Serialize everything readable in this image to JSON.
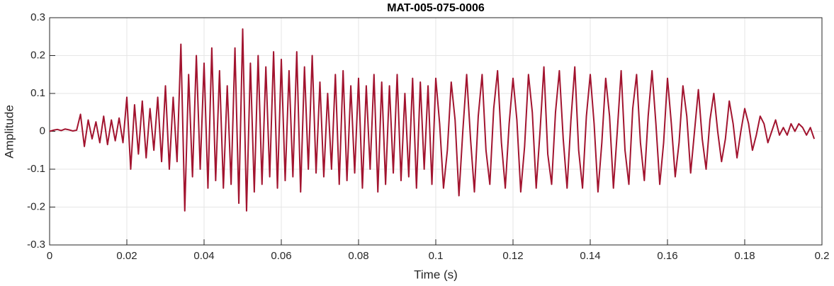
{
  "chart_data": {
    "type": "line",
    "title": "MAT-005-075-0006",
    "xlabel": "Time (s)",
    "ylabel": "Amplitude",
    "xlim": [
      0,
      0.2
    ],
    "ylim": [
      -0.3,
      0.3
    ],
    "xticks": [
      0,
      0.02,
      0.04,
      0.06,
      0.08,
      0.1,
      0.12,
      0.14,
      0.16,
      0.18,
      0.2
    ],
    "yticks": [
      -0.3,
      -0.2,
      -0.1,
      0,
      0.1,
      0.2,
      0.3
    ],
    "grid": true,
    "x": [
      0,
      0.001,
      0.002,
      0.003,
      0.004,
      0.005,
      0.006,
      0.007,
      0.008,
      0.009,
      0.01,
      0.011,
      0.012,
      0.013,
      0.014,
      0.015,
      0.016,
      0.017,
      0.018,
      0.019,
      0.02,
      0.021,
      0.022,
      0.023,
      0.024,
      0.025,
      0.026,
      0.027,
      0.028,
      0.029,
      0.03,
      0.031,
      0.032,
      0.033,
      0.034,
      0.035,
      0.036,
      0.037,
      0.038,
      0.039,
      0.04,
      0.041,
      0.042,
      0.043,
      0.044,
      0.045,
      0.046,
      0.047,
      0.048,
      0.049,
      0.05,
      0.051,
      0.052,
      0.053,
      0.054,
      0.055,
      0.056,
      0.057,
      0.058,
      0.059,
      0.06,
      0.061,
      0.062,
      0.063,
      0.064,
      0.065,
      0.066,
      0.067,
      0.068,
      0.069,
      0.07,
      0.071,
      0.072,
      0.073,
      0.074,
      0.075,
      0.076,
      0.077,
      0.078,
      0.079,
      0.08,
      0.081,
      0.082,
      0.083,
      0.084,
      0.085,
      0.086,
      0.087,
      0.088,
      0.089,
      0.09,
      0.091,
      0.092,
      0.093,
      0.094,
      0.095,
      0.096,
      0.097,
      0.098,
      0.099,
      0.1,
      0.101,
      0.102,
      0.103,
      0.104,
      0.105,
      0.106,
      0.107,
      0.108,
      0.109,
      0.11,
      0.111,
      0.112,
      0.113,
      0.114,
      0.115,
      0.116,
      0.117,
      0.118,
      0.119,
      0.12,
      0.121,
      0.122,
      0.123,
      0.124,
      0.125,
      0.126,
      0.127,
      0.128,
      0.129,
      0.13,
      0.131,
      0.132,
      0.133,
      0.134,
      0.135,
      0.136,
      0.137,
      0.138,
      0.139,
      0.14,
      0.141,
      0.142,
      0.143,
      0.144,
      0.145,
      0.146,
      0.147,
      0.148,
      0.149,
      0.15,
      0.151,
      0.152,
      0.153,
      0.154,
      0.155,
      0.156,
      0.157,
      0.158,
      0.159,
      0.16,
      0.161,
      0.162,
      0.163,
      0.164,
      0.165,
      0.166,
      0.167,
      0.168,
      0.169,
      0.17,
      0.171,
      0.172,
      0.173,
      0.174,
      0.175,
      0.176,
      0.177,
      0.178,
      0.179,
      0.18,
      0.181,
      0.182,
      0.183,
      0.184,
      0.185,
      0.186,
      0.187,
      0.188,
      0.189,
      0.19,
      0.191,
      0.192,
      0.193,
      0.194,
      0.195,
      0.196,
      0.197,
      0.198
    ],
    "series": [
      {
        "color": "#a2142f",
        "values": [
          0,
          0.003,
          0.005,
          0.002,
          0.006,
          0.004,
          0.001,
          0.003,
          0.045,
          -0.04,
          0.03,
          -0.02,
          0.025,
          -0.03,
          0.04,
          -0.035,
          0.03,
          -0.025,
          0.035,
          -0.03,
          0.09,
          -0.1,
          0.07,
          -0.06,
          0.08,
          -0.07,
          0.06,
          -0.05,
          0.09,
          -0.08,
          0.12,
          -0.1,
          0.09,
          -0.08,
          0.23,
          -0.21,
          0.15,
          -0.12,
          0.2,
          -0.1,
          0.18,
          -0.15,
          0.22,
          -0.13,
          0.16,
          -0.15,
          0.12,
          -0.14,
          0.22,
          -0.19,
          0.27,
          -0.21,
          0.18,
          -0.16,
          0.2,
          -0.14,
          0.17,
          -0.12,
          0.21,
          -0.15,
          0.19,
          -0.13,
          0.16,
          -0.12,
          0.21,
          -0.16,
          0.17,
          -0.1,
          0.2,
          -0.11,
          0.13,
          -0.12,
          0.1,
          -0.1,
          0.15,
          -0.14,
          0.16,
          -0.13,
          0.12,
          -0.11,
          0.14,
          -0.15,
          0.12,
          -0.1,
          0.15,
          -0.16,
          0.13,
          -0.14,
          0.12,
          -0.11,
          0.15,
          -0.13,
          0.1,
          -0.12,
          0.14,
          -0.15,
          0.13,
          -0.1,
          0.12,
          -0.14,
          0.14,
          0.02,
          -0.15,
          -0.05,
          0.13,
          0.03,
          -0.17,
          0.0,
          0.15,
          -0.02,
          -0.16,
          0.04,
          0.15,
          -0.05,
          -0.14,
          0.06,
          0.16,
          -0.03,
          -0.15,
          0.02,
          0.14,
          0.03,
          -0.16,
          -0.04,
          0.15,
          0.05,
          -0.15,
          0.0,
          0.17,
          -0.06,
          -0.14,
          0.05,
          0.16,
          -0.02,
          -0.15,
          0.03,
          0.17,
          -0.05,
          -0.15,
          0.04,
          0.15,
          0.02,
          -0.16,
          -0.03,
          0.14,
          0.04,
          -0.15,
          0.0,
          0.16,
          -0.05,
          -0.14,
          0.06,
          0.15,
          -0.03,
          -0.13,
          0.04,
          0.16,
          0.02,
          -0.14,
          -0.03,
          0.14,
          0.02,
          -0.12,
          -0.03,
          0.12,
          0.04,
          -0.11,
          0.0,
          0.11,
          -0.02,
          -0.1,
          0.03,
          0.1,
          0.0,
          -0.08,
          -0.02,
          0.08,
          0.02,
          -0.07,
          0.0,
          0.06,
          0.02,
          -0.05,
          -0.01,
          0.04,
          0.02,
          -0.03,
          0.0,
          0.03,
          -0.01,
          0.01,
          -0.01,
          0.02,
          0.0,
          0.02,
          0.01,
          -0.01,
          0.01,
          -0.02
        ]
      }
    ]
  }
}
